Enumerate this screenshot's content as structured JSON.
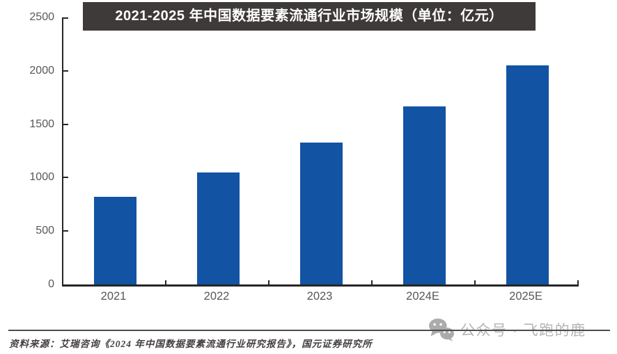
{
  "title_banner": {
    "text": "2021-2025 年中国数据要素流通行业市场规模（单位：亿元）"
  },
  "chart_data": {
    "type": "bar",
    "title": "2021-2025 年中国数据要素流通行业市场规模（单位：亿元）",
    "unit": "亿元",
    "categories": [
      "2021",
      "2022",
      "2023",
      "2024E",
      "2025E"
    ],
    "values": [
      820,
      1050,
      1330,
      1670,
      2050
    ],
    "xlabel": "",
    "ylabel": "",
    "ylim": [
      0,
      2500
    ],
    "yticks": [
      0,
      500,
      1000,
      1500,
      2000,
      2500
    ],
    "grid": false,
    "legend_position": "none",
    "bar_color": "#1253A4"
  },
  "footer": {
    "source_text": "资料来源：艾瑞咨询《2024 年中国数据要素流通行业研究报告》，国元证券研究所"
  },
  "watermark": {
    "icon": "wechat-icon",
    "text": "公众号 · 飞跑的鹿"
  },
  "colors": {
    "background": "#FFFFFF",
    "banner_bg": "#3E3A39",
    "banner_text": "#FFFFFF",
    "bar": "#1253A4",
    "axis": "#262626",
    "tick_label": "#595757",
    "divider": "#4D4D4D",
    "footer_text": "#44403F",
    "watermark": "#B5B5B5"
  }
}
